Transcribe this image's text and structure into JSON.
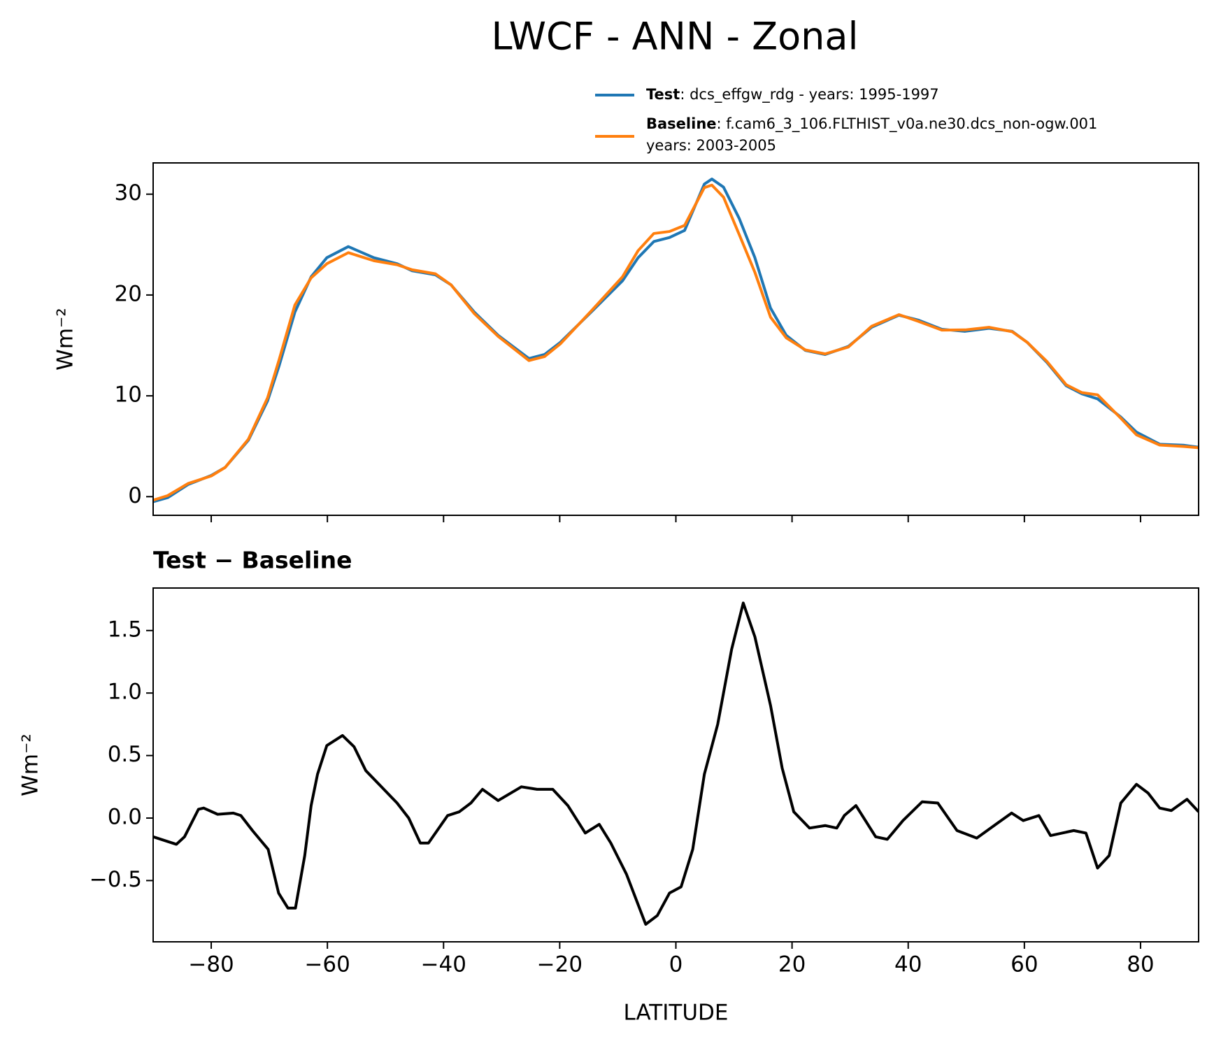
{
  "title": "LWCF - ANN - Zonal",
  "chart_data": [
    {
      "type": "line",
      "x": [
        -90,
        -87.5,
        -84,
        -80,
        -77.6,
        -73.6,
        -70.3,
        -68.3,
        -65.6,
        -62.8,
        -60.1,
        -56.4,
        -52,
        -48,
        -45.4,
        -41.4,
        -38.7,
        -34.7,
        -30.6,
        -25.3,
        -22.6,
        -19.9,
        -14.6,
        -9.2,
        -6.5,
        -3.8,
        -1.1,
        1.5,
        4.9,
        6.2,
        8.2,
        10.9,
        13.6,
        16.3,
        19,
        22.3,
        25.7,
        29.7,
        33.7,
        38.4,
        41.8,
        45.8,
        49.8,
        53.9,
        57.9,
        60.5,
        63.9,
        67.2,
        69.9,
        72.6,
        76.6,
        79.3,
        83.3,
        87.4,
        90
      ],
      "series": [
        {
          "name": "Test",
          "description": [
            ": dcs_effgw_rdg - years: 1995-1997"
          ],
          "color": "#1f77b4",
          "values": [
            -0.5,
            -0.1,
            1.2,
            2.1,
            2.9,
            5.6,
            9.5,
            13,
            18.3,
            21.8,
            23.7,
            24.8,
            23.7,
            23.1,
            22.4,
            22.0,
            21.0,
            18.3,
            16.0,
            13.7,
            14.1,
            15.3,
            18.3,
            21.4,
            23.7,
            25.3,
            25.7,
            26.4,
            31.0,
            31.5,
            30.7,
            27.6,
            23.7,
            18.7,
            16.0,
            14.5,
            14.1,
            14.9,
            16.8,
            18.0,
            17.5,
            16.6,
            16.4,
            16.7,
            16.4,
            15.3,
            13.3,
            11.0,
            10.2,
            9.7,
            7.9,
            6.4,
            5.2,
            5.1,
            4.9
          ]
        },
        {
          "name": "Baseline",
          "description": [
            ": f.cam6_3_106.FLTHIST_v0a.ne30.dcs_non-ogw.001",
            "years: 2003-2005"
          ],
          "color": "#ff7f0e",
          "values": [
            -0.35,
            0.1,
            1.3,
            2.05,
            2.9,
            5.7,
            9.8,
            13.6,
            19.0,
            21.7,
            23.1,
            24.2,
            23.4,
            23.0,
            22.5,
            22.1,
            21.0,
            18.15,
            15.9,
            13.5,
            13.9,
            15.15,
            18.4,
            21.8,
            24.4,
            26.1,
            26.3,
            26.9,
            30.65,
            30.9,
            29.7,
            26.0,
            22.25,
            17.8,
            15.75,
            14.55,
            14.16,
            14.84,
            16.9,
            18.05,
            17.38,
            16.52,
            16.54,
            16.8,
            16.36,
            15.3,
            13.4,
            11.1,
            10.32,
            10.1,
            7.78,
            6.13,
            5.12,
            4.98,
            4.85
          ]
        }
      ],
      "ylabel": "Wm⁻²",
      "xlim": [
        -90,
        90
      ],
      "xticks": [
        -80,
        -60,
        -40,
        -20,
        0,
        20,
        40,
        60,
        80
      ],
      "show_xtick_labels": false,
      "ylim": [
        -1.85,
        33.1
      ],
      "yticks": [
        0,
        10,
        20,
        30
      ]
    },
    {
      "type": "line",
      "subtitle": "Test − Baseline",
      "x": [
        -90,
        -88,
        -86,
        -84.6,
        -82.2,
        -81.3,
        -78.9,
        -76.2,
        -74.9,
        -72.9,
        -70.2,
        -68.4,
        -66.8,
        -65.5,
        -63.9,
        -62.8,
        -61.7,
        -60.1,
        -57.4,
        -55.4,
        -53.4,
        -50.7,
        -48,
        -46,
        -44,
        -42.6,
        -39.3,
        -37.3,
        -35.3,
        -33.3,
        -30.6,
        -26.6,
        -23.9,
        -21.2,
        -18.6,
        -15.6,
        -13.2,
        -11.2,
        -8.5,
        -5.2,
        -3.2,
        -1.1,
        0.9,
        2.9,
        4.9,
        7.2,
        9.6,
        11.6,
        13.6,
        16.3,
        18.3,
        20.3,
        23,
        25.7,
        27.7,
        29,
        31,
        34.4,
        36.4,
        39.1,
        42.4,
        45.1,
        48.4,
        51.8,
        55.1,
        57.8,
        59.8,
        62.5,
        64.5,
        68.5,
        70.6,
        72.6,
        74.6,
        76.6,
        79.3,
        81.3,
        83.3,
        85.3,
        88,
        90
      ],
      "series": [
        {
          "name": "Test − Baseline",
          "color": "#000000",
          "values": [
            -0.15,
            -0.18,
            -0.21,
            -0.15,
            0.07,
            0.08,
            0.03,
            0.04,
            0.02,
            -0.1,
            -0.25,
            -0.6,
            -0.72,
            -0.72,
            -0.3,
            0.1,
            0.35,
            0.58,
            0.66,
            0.57,
            0.38,
            0.25,
            0.12,
            0.0,
            -0.2,
            -0.2,
            0.02,
            0.05,
            0.12,
            0.23,
            0.14,
            0.25,
            0.23,
            0.23,
            0.1,
            -0.12,
            -0.05,
            -0.2,
            -0.45,
            -0.85,
            -0.78,
            -0.6,
            -0.55,
            -0.25,
            0.35,
            0.75,
            1.35,
            1.72,
            1.45,
            0.9,
            0.4,
            0.05,
            -0.08,
            -0.06,
            -0.08,
            0.02,
            0.1,
            -0.15,
            -0.17,
            -0.02,
            0.13,
            0.12,
            -0.1,
            -0.16,
            -0.05,
            0.04,
            -0.02,
            0.02,
            -0.14,
            -0.1,
            -0.12,
            -0.4,
            -0.3,
            0.12,
            0.27,
            0.2,
            0.08,
            0.06,
            0.15,
            0.05
          ]
        }
      ],
      "xlabel": "LATITUDE",
      "ylabel": "Wm⁻²",
      "xlim": [
        -90,
        90
      ],
      "xticks": [
        {
          "value": -80,
          "label": "−80"
        },
        {
          "value": -60,
          "label": "−60"
        },
        {
          "value": -40,
          "label": "−40"
        },
        {
          "value": -20,
          "label": "−20"
        },
        0,
        20,
        40,
        60,
        80
      ],
      "show_xtick_labels": true,
      "ylim": [
        -0.99,
        1.84
      ],
      "yticks": [
        {
          "value": -0.5,
          "label": "−0.5"
        },
        {
          "value": 0,
          "label": "0.0"
        },
        {
          "value": 0.5,
          "label": "0.5"
        },
        {
          "value": 1,
          "label": "1.0"
        },
        {
          "value": 1.5,
          "label": "1.5"
        }
      ]
    }
  ]
}
